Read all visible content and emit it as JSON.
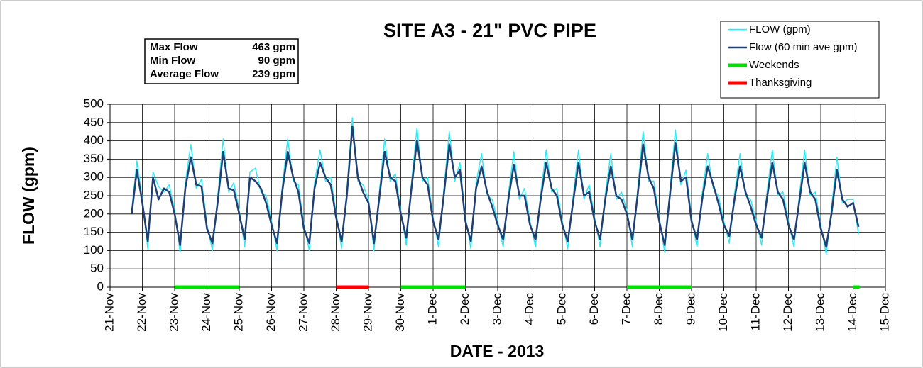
{
  "chart_data": {
    "type": "line",
    "title": "SITE A3 - 21\" PVC PIPE",
    "xlabel": "DATE - 2013",
    "ylabel": "FLOW (gpm)",
    "stats": [
      {
        "label": "Max Flow",
        "value": "463 gpm"
      },
      {
        "label": "Min Flow",
        "value": "90 gpm"
      },
      {
        "label": "Average Flow",
        "value": "239 gpm"
      }
    ],
    "xlim": [
      0,
      24
    ],
    "xticks": [
      {
        "value": 0,
        "label": "21-Nov"
      },
      {
        "value": 1,
        "label": "22-Nov"
      },
      {
        "value": 2,
        "label": "23-Nov"
      },
      {
        "value": 3,
        "label": "24-Nov"
      },
      {
        "value": 4,
        "label": "25-Nov"
      },
      {
        "value": 5,
        "label": "26-Nov"
      },
      {
        "value": 6,
        "label": "27-Nov"
      },
      {
        "value": 7,
        "label": "28-Nov"
      },
      {
        "value": 8,
        "label": "29-Nov"
      },
      {
        "value": 9,
        "label": "30-Nov"
      },
      {
        "value": 10,
        "label": "1-Dec"
      },
      {
        "value": 11,
        "label": "2-Dec"
      },
      {
        "value": 12,
        "label": "3-Dec"
      },
      {
        "value": 13,
        "label": "4-Dec"
      },
      {
        "value": 14,
        "label": "5-Dec"
      },
      {
        "value": 15,
        "label": "6-Dec"
      },
      {
        "value": 16,
        "label": "7-Dec"
      },
      {
        "value": 17,
        "label": "8-Dec"
      },
      {
        "value": 18,
        "label": "9-Dec"
      },
      {
        "value": 19,
        "label": "10-Dec"
      },
      {
        "value": 20,
        "label": "11-Dec"
      },
      {
        "value": 21,
        "label": "12-Dec"
      },
      {
        "value": 22,
        "label": "13-Dec"
      },
      {
        "value": 23,
        "label": "14-Dec"
      },
      {
        "value": 24,
        "label": "15-Dec"
      }
    ],
    "ylim": [
      0,
      500
    ],
    "yticks": [
      0,
      50,
      100,
      150,
      200,
      250,
      300,
      350,
      400,
      450,
      500
    ],
    "grid": true,
    "legend": "top-right",
    "series": [
      {
        "name": "FLOW (gpm)",
        "color": "#33e8f2",
        "width": 1.5,
        "x": [
          0.67,
          0.83,
          1,
          1.17,
          1.33,
          1.5,
          1.67,
          1.83,
          2,
          2.17,
          2.33,
          2.5,
          2.67,
          2.83,
          3,
          3.17,
          3.33,
          3.5,
          3.67,
          3.83,
          4,
          4.17,
          4.33,
          4.5,
          4.67,
          4.83,
          5,
          5.17,
          5.33,
          5.5,
          5.67,
          5.83,
          6,
          6.17,
          6.33,
          6.5,
          6.67,
          6.83,
          7,
          7.17,
          7.33,
          7.5,
          7.67,
          7.83,
          8,
          8.17,
          8.33,
          8.5,
          8.67,
          8.83,
          9,
          9.17,
          9.33,
          9.5,
          9.67,
          9.83,
          10,
          10.17,
          10.33,
          10.5,
          10.67,
          10.83,
          11,
          11.17,
          11.33,
          11.5,
          11.67,
          11.83,
          12,
          12.17,
          12.33,
          12.5,
          12.67,
          12.83,
          13,
          13.17,
          13.33,
          13.5,
          13.67,
          13.83,
          14,
          14.17,
          14.33,
          14.5,
          14.67,
          14.83,
          15,
          15.17,
          15.33,
          15.5,
          15.67,
          15.83,
          16,
          16.17,
          16.33,
          16.5,
          16.67,
          16.83,
          17,
          17.17,
          17.33,
          17.5,
          17.67,
          17.83,
          18,
          18.17,
          18.33,
          18.5,
          18.67,
          18.83,
          19,
          19.17,
          19.33,
          19.5,
          19.67,
          19.83,
          20,
          20.17,
          20.33,
          20.5,
          20.67,
          20.83,
          21,
          21.17,
          21.33,
          21.5,
          21.67,
          21.83,
          22,
          22.17,
          22.33,
          22.5,
          22.67,
          22.83,
          23,
          23.17
        ],
        "values": [
          210,
          345,
          240,
          105,
          315,
          275,
          260,
          280,
          210,
          95,
          285,
          390,
          270,
          295,
          170,
          100,
          245,
          405,
          260,
          285,
          210,
          110,
          315,
          325,
          260,
          250,
          180,
          100,
          275,
          405,
          290,
          280,
          170,
          100,
          285,
          375,
          290,
          300,
          200,
          105,
          265,
          463,
          290,
          280,
          240,
          100,
          255,
          405,
          290,
          310,
          210,
          115,
          285,
          435,
          290,
          300,
          190,
          110,
          265,
          425,
          290,
          340,
          190,
          105,
          285,
          365,
          250,
          240,
          180,
          110,
          255,
          370,
          240,
          270,
          180,
          110,
          255,
          375,
          260,
          270,
          180,
          105,
          245,
          375,
          240,
          280,
          190,
          110,
          255,
          365,
          240,
          260,
          210,
          110,
          265,
          425,
          290,
          290,
          190,
          95,
          265,
          430,
          280,
          320,
          190,
          110,
          255,
          365,
          270,
          250,
          180,
          120,
          255,
          365,
          250,
          240,
          180,
          115,
          255,
          375,
          250,
          260,
          180,
          110,
          245,
          375,
          250,
          260,
          170,
          90,
          215,
          355,
          230,
          240,
          240,
          145
        ]
      },
      {
        "name": "Flow (60 min ave gpm)",
        "color": "#1f3f75",
        "width": 2.5,
        "x": [
          0.67,
          0.83,
          1,
          1.17,
          1.33,
          1.5,
          1.67,
          1.83,
          2,
          2.17,
          2.33,
          2.5,
          2.67,
          2.83,
          3,
          3.17,
          3.33,
          3.5,
          3.67,
          3.83,
          4,
          4.17,
          4.33,
          4.5,
          4.67,
          4.83,
          5,
          5.17,
          5.33,
          5.5,
          5.67,
          5.83,
          6,
          6.17,
          6.33,
          6.5,
          6.67,
          6.83,
          7,
          7.17,
          7.33,
          7.5,
          7.67,
          7.83,
          8,
          8.17,
          8.33,
          8.5,
          8.67,
          8.83,
          9,
          9.17,
          9.33,
          9.5,
          9.67,
          9.83,
          10,
          10.17,
          10.33,
          10.5,
          10.67,
          10.83,
          11,
          11.17,
          11.33,
          11.5,
          11.67,
          11.83,
          12,
          12.17,
          12.33,
          12.5,
          12.67,
          12.83,
          13,
          13.17,
          13.33,
          13.5,
          13.67,
          13.83,
          14,
          14.17,
          14.33,
          14.5,
          14.67,
          14.83,
          15,
          15.17,
          15.33,
          15.5,
          15.67,
          15.83,
          16,
          16.17,
          16.33,
          16.5,
          16.67,
          16.83,
          17,
          17.17,
          17.33,
          17.5,
          17.67,
          17.83,
          18,
          18.17,
          18.33,
          18.5,
          18.67,
          18.83,
          19,
          19.17,
          19.33,
          19.5,
          19.67,
          19.83,
          20,
          20.17,
          20.33,
          20.5,
          20.67,
          20.83,
          21,
          21.17,
          21.33,
          21.5,
          21.67,
          21.83,
          22,
          22.17,
          22.33,
          22.5,
          22.67,
          22.83,
          23,
          23.17
        ],
        "values": [
          200,
          320,
          230,
          125,
          300,
          240,
          270,
          260,
          200,
          115,
          270,
          355,
          280,
          275,
          160,
          120,
          230,
          370,
          270,
          265,
          200,
          130,
          300,
          290,
          270,
          230,
          170,
          120,
          260,
          370,
          300,
          260,
          160,
          120,
          270,
          340,
          300,
          280,
          190,
          125,
          250,
          440,
          300,
          260,
          230,
          120,
          240,
          370,
          300,
          290,
          200,
          135,
          270,
          400,
          300,
          280,
          180,
          130,
          250,
          390,
          300,
          320,
          180,
          125,
          270,
          330,
          260,
          220,
          170,
          130,
          240,
          335,
          250,
          250,
          170,
          130,
          240,
          340,
          270,
          250,
          170,
          125,
          230,
          340,
          250,
          260,
          180,
          130,
          240,
          330,
          250,
          240,
          200,
          130,
          250,
          390,
          300,
          270,
          180,
          115,
          250,
          395,
          290,
          300,
          180,
          130,
          240,
          330,
          280,
          230,
          170,
          140,
          240,
          330,
          260,
          220,
          170,
          135,
          240,
          340,
          260,
          240,
          170,
          130,
          230,
          340,
          260,
          240,
          160,
          110,
          200,
          320,
          240,
          220,
          230,
          165
        ]
      },
      {
        "name": "Weekends",
        "color": "#00e000",
        "width": 5,
        "x": [
          2,
          4,
          null,
          9,
          11,
          null,
          16,
          18,
          null,
          23,
          23.2
        ],
        "values": [
          0,
          0,
          null,
          0,
          0,
          null,
          0,
          0,
          null,
          0,
          0
        ]
      },
      {
        "name": "Thanksgiving",
        "color": "#ff0000",
        "width": 5,
        "x": [
          7,
          8
        ],
        "values": [
          0,
          0
        ]
      }
    ]
  }
}
